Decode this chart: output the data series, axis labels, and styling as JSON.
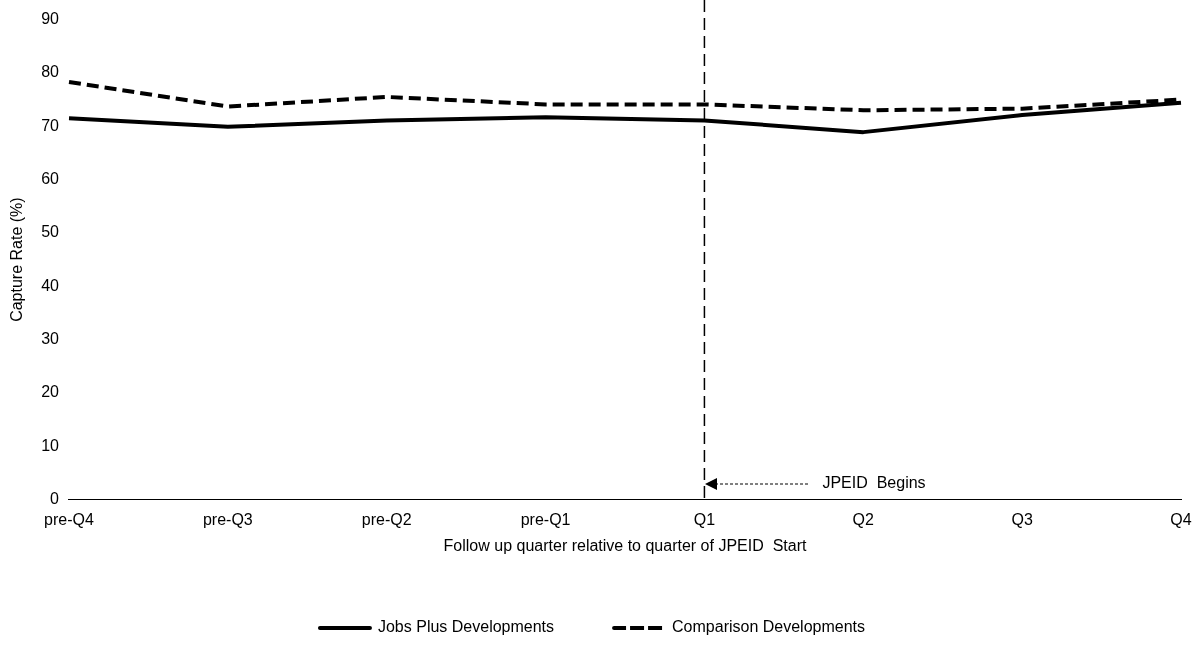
{
  "chart_data": {
    "type": "line",
    "xlabel": "Follow up quarter relative to quarter of JPEID  Start",
    "ylabel": "Capture Rate (%)",
    "categories": [
      "pre-Q4",
      "pre-Q3",
      "pre-Q2",
      "pre-Q1",
      "Q1",
      "Q2",
      "Q3",
      "Q4"
    ],
    "series": [
      {
        "name": "Jobs Plus Developments",
        "color": "#000000",
        "line_style": "solid",
        "values": [
          71.5,
          69.9,
          71.1,
          71.7,
          71.1,
          68.9,
          72.1,
          74.4
        ]
      },
      {
        "name": "Comparison Developments",
        "color": "#000000",
        "line_style": "dashed",
        "values": [
          78.3,
          73.7,
          75.5,
          74.1,
          74.1,
          73.0,
          73.3,
          75.0
        ]
      }
    ],
    "ylim": [
      0,
      90
    ],
    "yticks": [
      0,
      10,
      20,
      30,
      40,
      50,
      60,
      70,
      80,
      90
    ],
    "grid": false,
    "legend": "bottom",
    "marker": "none",
    "ref_lines": [
      {
        "axis": "x",
        "value": "Q1",
        "color": "#000000",
        "line_style": "dashed"
      }
    ],
    "annotations": [
      "JPEID  Begins"
    ]
  }
}
